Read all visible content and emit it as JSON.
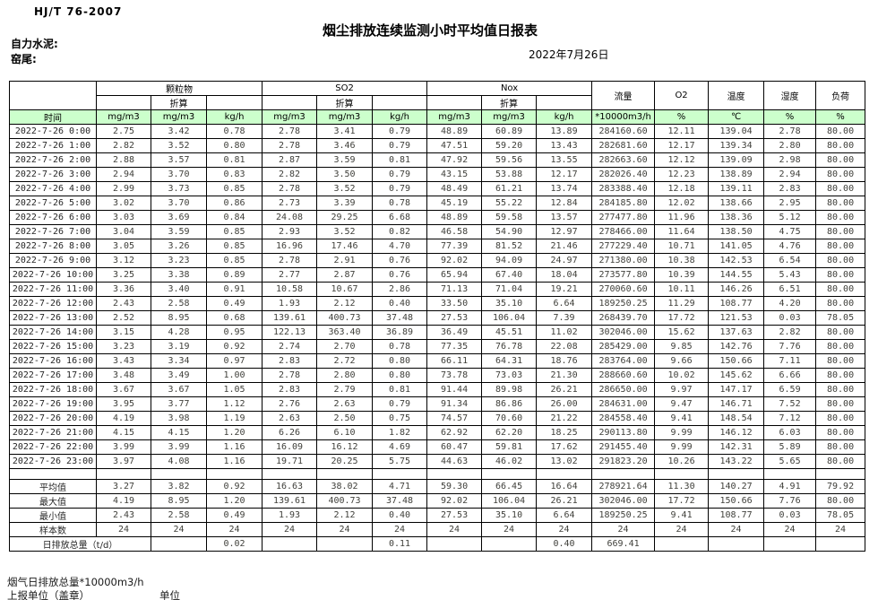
{
  "page": {
    "standard": "HJ/T 76-2007",
    "title": "烟尘排放连续监测小时平均值日报表",
    "company_label": "自力水泥:",
    "section_label": "窑尾:",
    "date": "2022年7月26日"
  },
  "table": {
    "time_label": "时间",
    "converted_label": "折算",
    "groups": {
      "pm": "颗粒物",
      "so2": "SO2",
      "nox": "Nox",
      "flow": "流量",
      "o2": "O2",
      "temp": "温度",
      "humidity": "湿度",
      "load": "负荷"
    },
    "units": [
      "mg/m3",
      "mg/m3",
      "kg/h",
      "mg/m3",
      "mg/m3",
      "kg/h",
      "mg/m3",
      "mg/m3",
      "kg/h",
      "*10000m3/h",
      "%",
      "℃",
      "%",
      "%"
    ],
    "rows": [
      [
        "2022-7-26  0:00",
        "2.75",
        "3.42",
        "0.78",
        "2.78",
        "3.41",
        "0.79",
        "48.89",
        "60.89",
        "13.89",
        "284160.60",
        "12.11",
        "139.04",
        "2.78",
        "80.00"
      ],
      [
        "2022-7-26  1:00",
        "2.82",
        "3.52",
        "0.80",
        "2.78",
        "3.46",
        "0.79",
        "47.51",
        "59.20",
        "13.43",
        "282681.60",
        "12.17",
        "139.34",
        "2.80",
        "80.00"
      ],
      [
        "2022-7-26  2:00",
        "2.88",
        "3.57",
        "0.81",
        "2.87",
        "3.59",
        "0.81",
        "47.92",
        "59.56",
        "13.55",
        "282663.60",
        "12.12",
        "139.09",
        "2.98",
        "80.00"
      ],
      [
        "2022-7-26  3:00",
        "2.94",
        "3.70",
        "0.83",
        "2.82",
        "3.50",
        "0.79",
        "43.15",
        "53.88",
        "12.17",
        "282026.40",
        "12.23",
        "138.89",
        "2.94",
        "80.00"
      ],
      [
        "2022-7-26  4:00",
        "2.99",
        "3.73",
        "0.85",
        "2.78",
        "3.52",
        "0.79",
        "48.49",
        "61.21",
        "13.74",
        "283388.40",
        "12.18",
        "139.11",
        "2.83",
        "80.00"
      ],
      [
        "2022-7-26  5:00",
        "3.02",
        "3.70",
        "0.86",
        "2.73",
        "3.39",
        "0.78",
        "45.19",
        "55.22",
        "12.84",
        "284185.80",
        "12.02",
        "138.66",
        "2.95",
        "80.00"
      ],
      [
        "2022-7-26  6:00",
        "3.03",
        "3.69",
        "0.84",
        "24.08",
        "29.25",
        "6.68",
        "48.89",
        "59.58",
        "13.57",
        "277477.80",
        "11.96",
        "138.36",
        "5.12",
        "80.00"
      ],
      [
        "2022-7-26  7:00",
        "3.04",
        "3.59",
        "0.85",
        "2.93",
        "3.52",
        "0.82",
        "46.58",
        "54.90",
        "12.97",
        "278466.00",
        "11.64",
        "138.50",
        "4.75",
        "80.00"
      ],
      [
        "2022-7-26  8:00",
        "3.05",
        "3.26",
        "0.85",
        "16.96",
        "17.46",
        "4.70",
        "77.39",
        "81.52",
        "21.46",
        "277229.40",
        "10.71",
        "141.05",
        "4.76",
        "80.00"
      ],
      [
        "2022-7-26  9:00",
        "3.12",
        "3.23",
        "0.85",
        "2.78",
        "2.91",
        "0.76",
        "92.02",
        "94.09",
        "24.97",
        "271380.00",
        "10.38",
        "142.53",
        "6.54",
        "80.00"
      ],
      [
        "2022-7-26 10:00",
        "3.25",
        "3.38",
        "0.89",
        "2.77",
        "2.87",
        "0.76",
        "65.94",
        "67.40",
        "18.04",
        "273577.80",
        "10.39",
        "144.55",
        "5.43",
        "80.00"
      ],
      [
        "2022-7-26 11:00",
        "3.36",
        "3.40",
        "0.91",
        "10.58",
        "10.67",
        "2.86",
        "71.13",
        "71.04",
        "19.21",
        "270060.60",
        "10.11",
        "146.26",
        "6.51",
        "80.00"
      ],
      [
        "2022-7-26 12:00",
        "2.43",
        "2.58",
        "0.49",
        "1.93",
        "2.12",
        "0.40",
        "33.50",
        "35.10",
        "6.64",
        "189250.25",
        "11.29",
        "108.77",
        "4.20",
        "80.00"
      ],
      [
        "2022-7-26 13:00",
        "2.52",
        "8.95",
        "0.68",
        "139.61",
        "400.73",
        "37.48",
        "27.53",
        "106.04",
        "7.39",
        "268439.70",
        "17.72",
        "121.53",
        "0.03",
        "78.05"
      ],
      [
        "2022-7-26 14:00",
        "3.15",
        "4.28",
        "0.95",
        "122.13",
        "363.40",
        "36.89",
        "36.49",
        "45.51",
        "11.02",
        "302046.00",
        "15.62",
        "137.63",
        "2.82",
        "80.00"
      ],
      [
        "2022-7-26 15:00",
        "3.23",
        "3.19",
        "0.92",
        "2.74",
        "2.70",
        "0.78",
        "77.35",
        "76.78",
        "22.08",
        "285429.00",
        "9.85",
        "142.76",
        "7.76",
        "80.00"
      ],
      [
        "2022-7-26 16:00",
        "3.43",
        "3.34",
        "0.97",
        "2.83",
        "2.72",
        "0.80",
        "66.11",
        "64.31",
        "18.76",
        "283764.00",
        "9.66",
        "150.66",
        "7.11",
        "80.00"
      ],
      [
        "2022-7-26 17:00",
        "3.48",
        "3.49",
        "1.00",
        "2.78",
        "2.80",
        "0.80",
        "73.78",
        "73.03",
        "21.30",
        "288660.60",
        "10.02",
        "145.62",
        "6.66",
        "80.00"
      ],
      [
        "2022-7-26 18:00",
        "3.67",
        "3.67",
        "1.05",
        "2.83",
        "2.79",
        "0.81",
        "91.44",
        "89.98",
        "26.21",
        "286650.00",
        "9.97",
        "147.17",
        "6.59",
        "80.00"
      ],
      [
        "2022-7-26 19:00",
        "3.95",
        "3.77",
        "1.12",
        "2.76",
        "2.63",
        "0.79",
        "91.34",
        "86.86",
        "26.00",
        "284631.00",
        "9.47",
        "146.71",
        "7.52",
        "80.00"
      ],
      [
        "2022-7-26 20:00",
        "4.19",
        "3.98",
        "1.19",
        "2.63",
        "2.50",
        "0.75",
        "74.57",
        "70.60",
        "21.22",
        "284558.40",
        "9.41",
        "148.54",
        "7.12",
        "80.00"
      ],
      [
        "2022-7-26 21:00",
        "4.15",
        "4.15",
        "1.20",
        "6.26",
        "6.10",
        "1.82",
        "62.92",
        "62.20",
        "18.25",
        "290113.80",
        "9.99",
        "146.12",
        "6.03",
        "80.00"
      ],
      [
        "2022-7-26 22:00",
        "3.99",
        "3.99",
        "1.16",
        "16.09",
        "16.12",
        "4.69",
        "60.47",
        "59.81",
        "17.62",
        "291455.40",
        "9.99",
        "142.31",
        "5.89",
        "80.00"
      ],
      [
        "2022-7-26 23:00",
        "3.97",
        "4.08",
        "1.16",
        "19.71",
        "20.25",
        "5.75",
        "44.63",
        "46.02",
        "13.02",
        "291823.20",
        "10.26",
        "143.22",
        "5.65",
        "80.00"
      ]
    ],
    "summary_rows": [
      {
        "label": "平均值",
        "values": [
          "3.27",
          "3.82",
          "0.92",
          "16.63",
          "38.02",
          "4.71",
          "59.30",
          "66.45",
          "16.64",
          "278921.64",
          "11.30",
          "140.27",
          "4.91",
          "79.92"
        ]
      },
      {
        "label": "最大值",
        "values": [
          "4.19",
          "8.95",
          "1.20",
          "139.61",
          "400.73",
          "37.48",
          "92.02",
          "106.04",
          "26.21",
          "302046.00",
          "17.72",
          "150.66",
          "7.76",
          "80.00"
        ]
      },
      {
        "label": "最小值",
        "values": [
          "2.43",
          "2.58",
          "0.49",
          "1.93",
          "2.12",
          "0.40",
          "27.53",
          "35.10",
          "6.64",
          "189250.25",
          "9.41",
          "108.77",
          "0.03",
          "78.05"
        ]
      },
      {
        "label": "样本数",
        "values": [
          "24",
          "24",
          "24",
          "24",
          "24",
          "24",
          "24",
          "24",
          "24",
          "24",
          "24",
          "24",
          "24",
          "24"
        ]
      }
    ],
    "total_row": {
      "label": "日排放总量（t/d）",
      "values": [
        "",
        "0.02",
        "",
        "",
        "0.11",
        "",
        "",
        "0.40",
        "669.41",
        "",
        "",
        "",
        ""
      ]
    }
  },
  "footer": {
    "note": "烟气日排放总量*10000m3/h",
    "report_unit_label": "上报单位（盖章）",
    "unit_label": "单位"
  },
  "colors": {
    "header_green": "#ccffcc",
    "border": "#000000"
  }
}
